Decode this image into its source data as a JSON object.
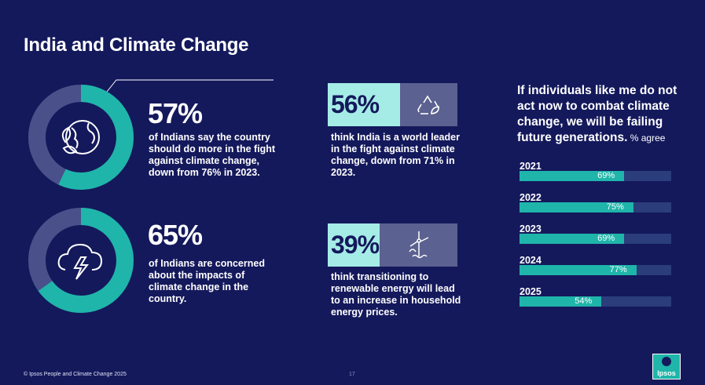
{
  "title": "India and Climate Change",
  "colors": {
    "background": "#14195c",
    "teal": "#1fb5aa",
    "light_teal": "#a5ece6",
    "ring_track": "#4a5089",
    "track": "#2b3d7b",
    "box_grey": "#5b6190"
  },
  "left_stats": [
    {
      "pct": "57%",
      "value": 57,
      "icon": "globe-leaves-icon",
      "desc": [
        "of Indians say the country",
        "should do more in the fight",
        "against climate change,",
        "down from 76% in 2023."
      ]
    },
    {
      "pct": "65%",
      "value": 65,
      "icon": "storm-cloud-lightning-icon",
      "desc": [
        "of Indians are concerned",
        "about the impacts of",
        "climate change in the",
        "country."
      ]
    }
  ],
  "mid_stats": [
    {
      "pct": "56%",
      "icon": "recycle-leaf-icon",
      "desc": [
        "think India is a world leader",
        "in the fight against climate",
        "change, down from 71% in",
        "2023."
      ]
    },
    {
      "pct": "39%",
      "icon": "wind-turbine-icon",
      "desc": [
        "think transitioning to",
        "renewable energy will lead",
        "to an increase in household",
        "energy prices."
      ]
    }
  ],
  "statement": {
    "lines": [
      "If individuals like me do not",
      "act now to combat climate",
      "change, we will be failing",
      "future generations."
    ],
    "suffix": " % agree"
  },
  "chart_data": {
    "type": "bar",
    "categories": [
      "2021",
      "2022",
      "2023",
      "2024",
      "2025"
    ],
    "values": [
      69,
      75,
      69,
      77,
      54
    ],
    "labels": [
      "69%",
      "75%",
      "69%",
      "77%",
      "54%"
    ],
    "ylim": [
      0,
      100
    ]
  },
  "footer": "© Ipsos People and Climate Change 2025",
  "page_number": "17",
  "logo_text": "Ipsos"
}
